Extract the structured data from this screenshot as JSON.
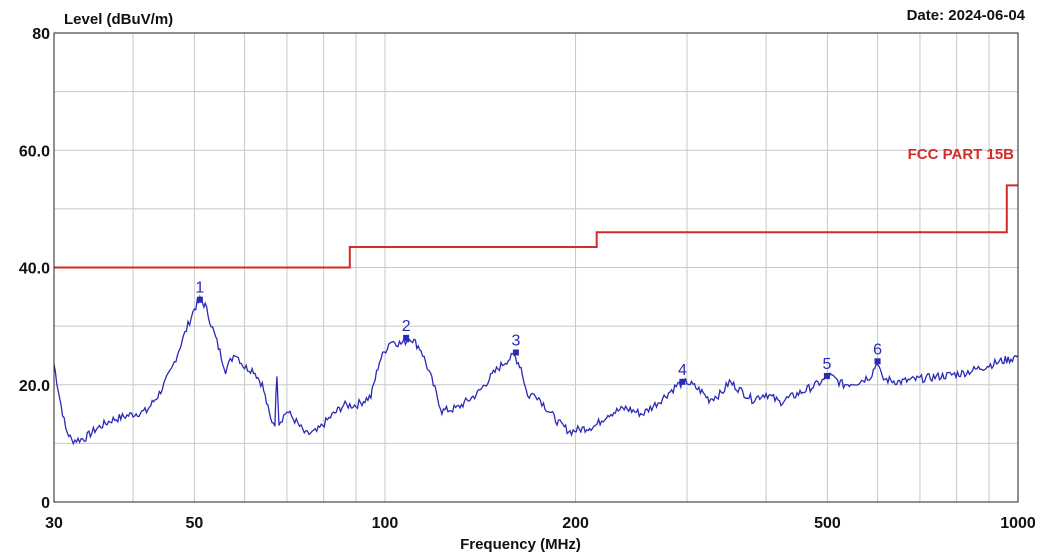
{
  "header": {
    "date_label": "Date: 2024-06-04"
  },
  "chart_data": {
    "type": "line",
    "ylabel": "Level (dBuV/m)",
    "xlabel": "Frequency (MHz)",
    "x_scale": "log",
    "xlim": [
      30,
      1000
    ],
    "ylim": [
      0,
      80
    ],
    "grid": true,
    "x_ticks": [
      30,
      50,
      100,
      200,
      500,
      1000
    ],
    "x_tick_labels": [
      "30",
      "50",
      "100",
      "200",
      "500",
      "1000"
    ],
    "y_ticks": [
      0,
      20,
      40,
      60,
      80
    ],
    "y_tick_labels": [
      "0",
      "20.0",
      "40.0",
      "60.0",
      "80"
    ],
    "colors": {
      "measurement": "#2a2ab8",
      "limit": "#d42a2a",
      "grid": "#c8c8c8"
    },
    "series": [
      {
        "name": "FCC PART 15B",
        "role": "limit",
        "points": [
          [
            30,
            40.0
          ],
          [
            88,
            40.0
          ],
          [
            88,
            43.5
          ],
          [
            216,
            43.5
          ],
          [
            216,
            46.0
          ],
          [
            960,
            46.0
          ],
          [
            960,
            54.0
          ],
          [
            1000,
            54.0
          ]
        ]
      },
      {
        "role": "measurement",
        "points": [
          [
            30,
            23.5
          ],
          [
            30.6,
            18.0
          ],
          [
            31.3,
            12.5
          ],
          [
            32,
            10.5
          ],
          [
            33.5,
            10.8
          ],
          [
            35,
            12.5
          ],
          [
            37,
            14.0
          ],
          [
            40,
            15.0
          ],
          [
            42,
            15.5
          ],
          [
            44,
            18.5
          ],
          [
            46,
            22.5
          ],
          [
            48,
            28.0
          ],
          [
            50,
            33.0
          ],
          [
            51,
            34.5
          ],
          [
            52,
            33.5
          ],
          [
            54,
            28.0
          ],
          [
            56,
            22.5
          ],
          [
            58,
            25.5
          ],
          [
            60,
            23.0
          ],
          [
            62,
            22.5
          ],
          [
            64,
            20.0
          ],
          [
            66,
            14.0
          ],
          [
            67,
            13.5
          ],
          [
            67.5,
            22.0
          ],
          [
            68,
            13.5
          ],
          [
            70,
            15.5
          ],
          [
            72,
            14.0
          ],
          [
            75,
            11.5
          ],
          [
            78,
            12.0
          ],
          [
            82,
            14.5
          ],
          [
            86,
            16.5
          ],
          [
            90,
            16.5
          ],
          [
            95,
            18.0
          ],
          [
            98,
            24.0
          ],
          [
            102,
            27.5
          ],
          [
            106,
            27.0
          ],
          [
            110,
            28.0
          ],
          [
            114,
            26.0
          ],
          [
            118,
            21.5
          ],
          [
            123,
            15.5
          ],
          [
            130,
            16.0
          ],
          [
            140,
            18.5
          ],
          [
            150,
            22.5
          ],
          [
            155,
            24.0
          ],
          [
            160,
            25.0
          ],
          [
            164,
            23.0
          ],
          [
            168,
            18.0
          ],
          [
            173,
            18.5
          ],
          [
            180,
            16.0
          ],
          [
            188,
            13.5
          ],
          [
            196,
            12.0
          ],
          [
            205,
            12.5
          ],
          [
            215,
            13.0
          ],
          [
            225,
            15.0
          ],
          [
            240,
            16.0
          ],
          [
            255,
            15.0
          ],
          [
            270,
            17.0
          ],
          [
            290,
            20.0
          ],
          [
            300,
            20.5
          ],
          [
            315,
            19.0
          ],
          [
            325,
            17.5
          ],
          [
            340,
            18.5
          ],
          [
            350,
            20.5
          ],
          [
            365,
            19.0
          ],
          [
            380,
            17.5
          ],
          [
            400,
            18.5
          ],
          [
            420,
            17.0
          ],
          [
            450,
            18.5
          ],
          [
            480,
            20.0
          ],
          [
            505,
            21.5
          ],
          [
            530,
            20.0
          ],
          [
            560,
            20.5
          ],
          [
            585,
            21.5
          ],
          [
            600,
            24.0
          ],
          [
            610,
            21.0
          ],
          [
            650,
            20.5
          ],
          [
            700,
            21.0
          ],
          [
            760,
            21.5
          ],
          [
            820,
            22.0
          ],
          [
            880,
            23.0
          ],
          [
            940,
            24.0
          ],
          [
            980,
            24.5
          ],
          [
            1000,
            25.0
          ]
        ]
      }
    ],
    "limit_label": "FCC PART 15B",
    "markers": [
      {
        "label": "1",
        "x": 51,
        "y": 34.5
      },
      {
        "label": "2",
        "x": 108,
        "y": 28.0
      },
      {
        "label": "3",
        "x": 161,
        "y": 25.5
      },
      {
        "label": "4",
        "x": 295,
        "y": 20.5
      },
      {
        "label": "5",
        "x": 499,
        "y": 21.5
      },
      {
        "label": "6",
        "x": 600,
        "y": 24.0
      }
    ]
  }
}
